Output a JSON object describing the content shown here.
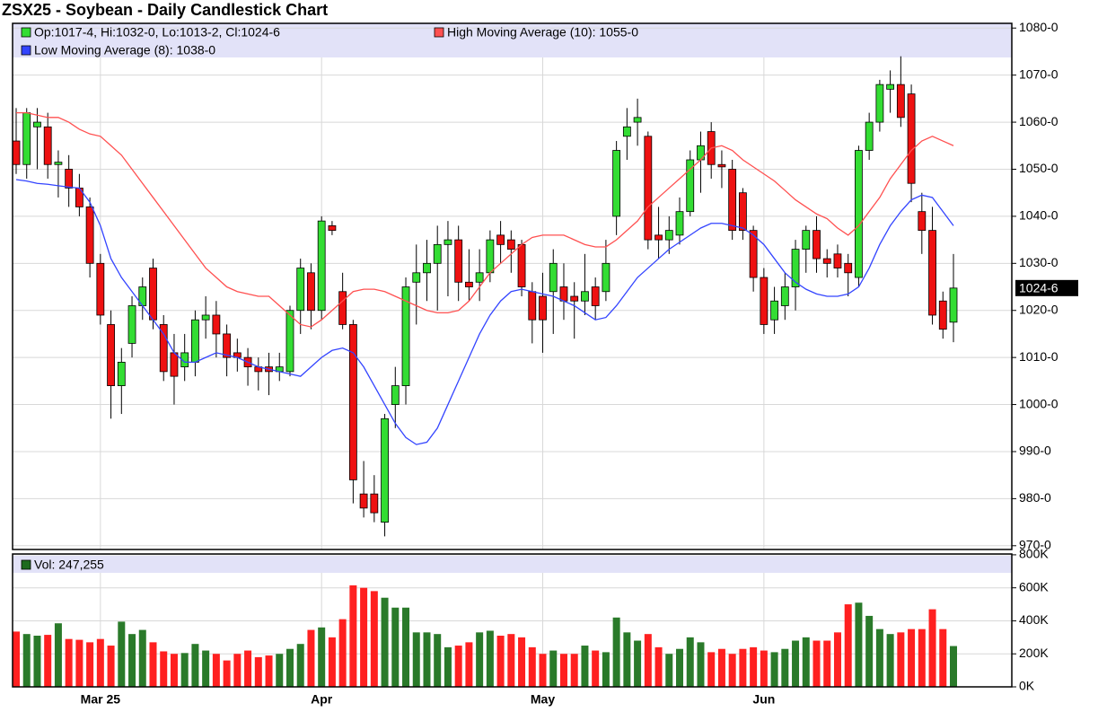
{
  "chart_data": {
    "type": "candlestick",
    "title": "ZSX25 - Soybean - Daily Candlestick Chart",
    "ohlc_label": "Op:1017-4, Hi:1032-0, Lo:1013-2, Cl:1024-6",
    "last_label": "1024-6",
    "categories": [
      null,
      null,
      null,
      null,
      null,
      null,
      null,
      null,
      "Mar 25",
      null,
      null,
      null,
      null,
      null,
      null,
      null,
      null,
      null,
      null,
      null,
      null,
      null,
      null,
      null,
      null,
      null,
      null,
      null,
      null,
      "Apr",
      null,
      null,
      null,
      null,
      null,
      null,
      null,
      null,
      null,
      null,
      null,
      null,
      null,
      null,
      null,
      null,
      null,
      null,
      null,
      null,
      "May",
      null,
      null,
      null,
      null,
      null,
      null,
      null,
      null,
      null,
      null,
      null,
      null,
      null,
      null,
      null,
      null,
      null,
      null,
      null,
      null,
      "Jun",
      null,
      null,
      null,
      null,
      null,
      null,
      null,
      null,
      null,
      null,
      null,
      null,
      null,
      null,
      null,
      null,
      null,
      null
    ],
    "open": [
      1056,
      1051,
      1059,
      1059,
      1051,
      1050,
      1046,
      1042,
      1030,
      1017,
      1004,
      1013,
      1021,
      1029,
      1017,
      1011,
      1008,
      1009,
      1018,
      1019,
      1015,
      1011,
      1010,
      1008,
      1008,
      1007,
      1007,
      1020,
      1028,
      1020,
      1038,
      1024,
      1017,
      981,
      981,
      975,
      1000,
      1004,
      1026,
      1028,
      1030,
      1034,
      1035,
      1026,
      1026,
      1028,
      1036,
      1035,
      1034,
      1024,
      1023,
      1024,
      1025,
      1023,
      1022,
      1025,
      1024,
      1040,
      1057,
      1060,
      1057,
      1036,
      1035,
      1036,
      1041,
      1052,
      1058,
      1051,
      1050,
      1045,
      1037,
      1027,
      1018,
      1021,
      1025,
      1033,
      1037,
      1031,
      1032,
      1030,
      1027,
      1054,
      1060,
      1067,
      1068,
      1066,
      1041,
      1037,
      1022,
      1017.5
    ],
    "high": [
      1063,
      1063,
      1063,
      1062,
      1054,
      1053,
      1049,
      1044,
      1032,
      1020,
      1012,
      1023,
      1027,
      1031,
      1019,
      1015,
      1015,
      1020,
      1023,
      1022,
      1017,
      1014,
      1012,
      1010,
      1011,
      1011,
      1021,
      1031,
      1030,
      1040,
      1039,
      1028,
      1018,
      988,
      985,
      998,
      1008,
      1027,
      1034,
      1035,
      1038,
      1039,
      1038,
      1033,
      1033,
      1037,
      1039,
      1037,
      1035,
      1026,
      1028,
      1033,
      1030,
      1026,
      1032,
      1027,
      1035,
      1056,
      1063,
      1065,
      1058,
      1042,
      1040,
      1044,
      1054,
      1058,
      1060,
      1054,
      1052,
      1046,
      1038,
      1029,
      1025,
      1028,
      1035,
      1038,
      1040,
      1033,
      1034,
      1032,
      1055,
      1062,
      1069,
      1071,
      1074,
      1068,
      1045,
      1042,
      1024,
      1032
    ],
    "low": [
      1049,
      1048,
      1050,
      1048,
      1044,
      1042,
      1040,
      1027,
      1017,
      997,
      998,
      1010,
      1018,
      1016,
      1005,
      1000,
      1005,
      1006,
      1014,
      1010,
      1006,
      1007,
      1004,
      1003,
      1002,
      1005,
      1006,
      1015,
      1016,
      1018,
      1036,
      1016,
      979,
      976,
      975,
      972,
      995,
      1000,
      1017,
      1022,
      1020,
      1023,
      1022,
      1022,
      1022,
      1026,
      1030,
      1028,
      1023,
      1013,
      1011,
      1015,
      1018,
      1014,
      1019,
      1018,
      1022,
      1036,
      1052,
      1055,
      1033,
      1031,
      1032,
      1034,
      1040,
      1045,
      1048,
      1046,
      1035,
      1035,
      1024,
      1015,
      1015,
      1018,
      1020,
      1028,
      1028,
      1027,
      1027,
      1023,
      1025,
      1052,
      1058,
      1062,
      1059,
      1043,
      1032,
      1017,
      1014,
      1013.25
    ],
    "close": [
      1051,
      1062,
      1060,
      1051,
      1051.5,
      1046,
      1042,
      1030,
      1019,
      1004,
      1009,
      1021,
      1025,
      1018,
      1007,
      1006,
      1011,
      1018,
      1019,
      1015,
      1010,
      1010,
      1008,
      1007,
      1007,
      1008,
      1020,
      1029,
      1020,
      1039,
      1037,
      1017,
      984,
      978,
      977,
      997,
      1004,
      1025,
      1028,
      1030,
      1034,
      1035,
      1026,
      1025,
      1028,
      1035,
      1034,
      1033,
      1025,
      1018,
      1018,
      1030,
      1022,
      1022,
      1024,
      1021,
      1030,
      1054,
      1059,
      1061,
      1035,
      1035,
      1037,
      1041,
      1052,
      1055,
      1051,
      1050.5,
      1037,
      1037,
      1027,
      1017,
      1022,
      1025,
      1033,
      1037,
      1031,
      1030,
      1029,
      1028,
      1054,
      1060,
      1068,
      1068,
      1061,
      1047,
      1037,
      1019,
      1016,
      1024.75
    ],
    "up_color": "#33dd33",
    "down_color": "#ee1111",
    "series": [
      {
        "name": "High Moving Average (10): 1055-0",
        "color": "#ff5050",
        "values": [
          1062,
          1062,
          1061.5,
          1061,
          1061,
          1060,
          1058.5,
          1057.5,
          1057,
          1055,
          1053,
          1050,
          1047,
          1044,
          1041,
          1038,
          1035,
          1032,
          1029,
          1027,
          1025,
          1024,
          1023.5,
          1023,
          1023,
          1021,
          1019,
          1017,
          1016.5,
          1018,
          1020,
          1022,
          1024,
          1024.5,
          1024.5,
          1024,
          1023,
          1022,
          1021,
          1020,
          1019.5,
          1019.5,
          1020,
          1022,
          1025,
          1028,
          1030,
          1032,
          1034,
          1035.5,
          1036,
          1036,
          1036,
          1035,
          1034,
          1033.5,
          1033.5,
          1035,
          1037,
          1039,
          1042,
          1044,
          1046,
          1048,
          1050,
          1052,
          1054.5,
          1055,
          1054,
          1052,
          1050.5,
          1049,
          1047.5,
          1045.5,
          1043.5,
          1042,
          1040.5,
          1039.5,
          1037.5,
          1036,
          1038,
          1041,
          1044,
          1048,
          1051,
          1054,
          1056,
          1057,
          1056,
          1055
        ]
      },
      {
        "name": "Low Moving Average (8): 1038-0",
        "color": "#3344ff",
        "values": [
          1047.8,
          1047.5,
          1047,
          1046.8,
          1046.5,
          1046.2,
          1046,
          1043,
          1038,
          1031,
          1027,
          1024,
          1021,
          1018,
          1015,
          1011,
          1009,
          1009,
          1010,
          1011,
          1010.5,
          1010,
          1009,
          1008,
          1007.5,
          1007,
          1006.5,
          1006,
          1008,
          1010,
          1011.5,
          1012,
          1011,
          1008,
          1004,
          1000,
          996,
          993,
          991.5,
          992,
          995,
          1000,
          1005,
          1010,
          1015,
          1019,
          1022,
          1024,
          1024.5,
          1024,
          1023.5,
          1023,
          1022,
          1021,
          1019.5,
          1018,
          1018.5,
          1021,
          1024,
          1027,
          1029,
          1031,
          1033,
          1034.5,
          1036,
          1037.5,
          1038.5,
          1038.5,
          1038,
          1037.5,
          1036,
          1034,
          1031,
          1028,
          1026,
          1024.5,
          1023.5,
          1023,
          1023,
          1023.5,
          1025,
          1029,
          1034,
          1038,
          1041,
          1043.5,
          1044.5,
          1044,
          1041,
          1038
        ]
      }
    ],
    "ylim": [
      969.2,
      1081
    ],
    "yticks": [
      {
        "value": 970,
        "label": "970-0"
      },
      {
        "value": 980,
        "label": "980-0"
      },
      {
        "value": 990,
        "label": "990-0"
      },
      {
        "value": 1000,
        "label": "1000-0"
      },
      {
        "value": 1010,
        "label": "1010-0"
      },
      {
        "value": 1020,
        "label": "1020-0"
      },
      {
        "value": 1030,
        "label": "1030-0"
      },
      {
        "value": 1040,
        "label": "1040-0"
      },
      {
        "value": 1050,
        "label": "1050-0"
      },
      {
        "value": 1060,
        "label": "1060-0"
      },
      {
        "value": 1070,
        "label": "1070-0"
      },
      {
        "value": 1080,
        "label": "1080-0"
      }
    ],
    "grid": true,
    "volume": {
      "label": "Vol: 247,255",
      "color": "#1e6b1e",
      "up_color": "#2a7a2a",
      "down_color": "#ff2020",
      "values": [
        335000,
        320000,
        310000,
        315000,
        385000,
        290000,
        285000,
        270000,
        290000,
        250000,
        395000,
        320000,
        345000,
        270000,
        215000,
        200000,
        205000,
        260000,
        220000,
        200000,
        160000,
        200000,
        220000,
        180000,
        190000,
        200000,
        230000,
        260000,
        345000,
        360000,
        300000,
        410000,
        615000,
        600000,
        580000,
        540000,
        480000,
        480000,
        330000,
        330000,
        320000,
        240000,
        250000,
        270000,
        330000,
        340000,
        310000,
        320000,
        300000,
        240000,
        200000,
        220000,
        200000,
        200000,
        250000,
        220000,
        210000,
        420000,
        330000,
        280000,
        320000,
        240000,
        200000,
        230000,
        300000,
        270000,
        210000,
        230000,
        200000,
        230000,
        240000,
        220000,
        210000,
        230000,
        280000,
        300000,
        280000,
        280000,
        330000,
        500000,
        510000,
        430000,
        350000,
        320000,
        330000,
        350000,
        350000,
        470000,
        350000,
        247255
      ],
      "ylim": [
        0,
        805000
      ],
      "yticks": [
        {
          "value": 0,
          "label": "0K"
        },
        {
          "value": 200000,
          "label": "200K"
        },
        {
          "value": 400000,
          "label": "400K"
        },
        {
          "value": 600000,
          "label": "600K"
        },
        {
          "value": 800000,
          "label": "800K"
        }
      ]
    }
  }
}
